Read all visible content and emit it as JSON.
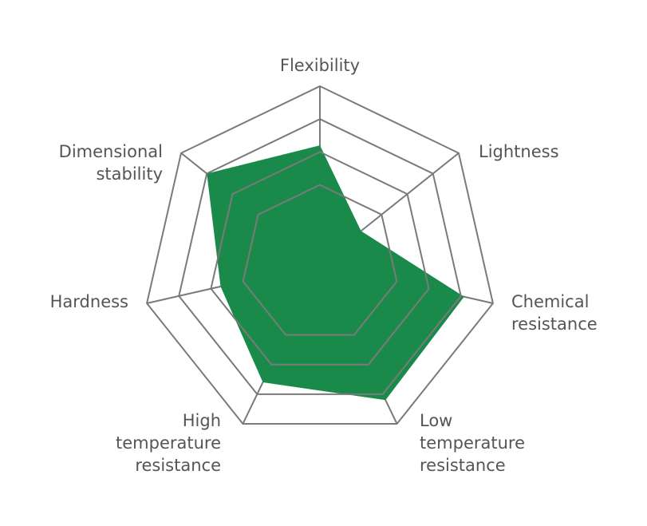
{
  "chart_data": {
    "type": "radar",
    "categories": [
      "Flexibility",
      "Lightness",
      "Chemical resistance",
      "Low temperature resistance",
      "High temperature resistance",
      "Hardness",
      "Dimensional stability"
    ],
    "series": [
      {
        "color": "#1a8a4a",
        "values": [
          3.2,
          1.2,
          4.1,
          4.2,
          3.6,
          2.7,
          4.0
        ]
      }
    ],
    "rlim": [
      -0.4,
      5
    ],
    "rticks": [
      2,
      3,
      4,
      5
    ],
    "grid": true
  }
}
